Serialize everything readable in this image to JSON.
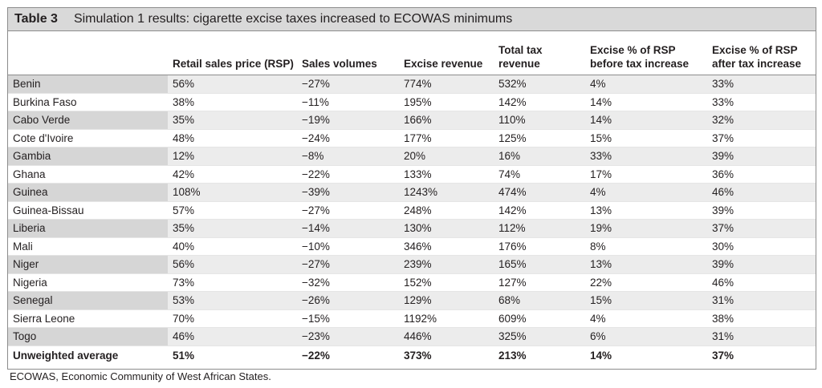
{
  "table": {
    "label": "Table 3",
    "title": "Simulation 1 results: cigarette excise taxes increased to ECOWAS minimums",
    "columns": [
      "",
      "Retail sales price (RSP)",
      "Sales volumes",
      "Excise revenue",
      "Total tax revenue",
      "Excise % of RSP before tax increase",
      "Excise % of RSP after tax increase"
    ],
    "rows": [
      [
        "Benin",
        "56%",
        "−27%",
        "774%",
        "532%",
        "4%",
        "33%"
      ],
      [
        "Burkina Faso",
        "38%",
        "−11%",
        "195%",
        "142%",
        "14%",
        "33%"
      ],
      [
        "Cabo Verde",
        "35%",
        "−19%",
        "166%",
        "110%",
        "14%",
        "32%"
      ],
      [
        "Cote d'Ivoire",
        "48%",
        "−24%",
        "177%",
        "125%",
        "15%",
        "37%"
      ],
      [
        "Gambia",
        "12%",
        "−8%",
        "20%",
        "16%",
        "33%",
        "39%"
      ],
      [
        "Ghana",
        "42%",
        "−22%",
        "133%",
        "74%",
        "17%",
        "36%"
      ],
      [
        "Guinea",
        "108%",
        "−39%",
        "1243%",
        "474%",
        "4%",
        "46%"
      ],
      [
        "Guinea-Bissau",
        "57%",
        "−27%",
        "248%",
        "142%",
        "13%",
        "39%"
      ],
      [
        "Liberia",
        "35%",
        "−14%",
        "130%",
        "112%",
        "19%",
        "37%"
      ],
      [
        "Mali",
        "40%",
        "−10%",
        "346%",
        "176%",
        "8%",
        "30%"
      ],
      [
        "Niger",
        "56%",
        "−27%",
        "239%",
        "165%",
        "13%",
        "39%"
      ],
      [
        "Nigeria",
        "73%",
        "−32%",
        "152%",
        "127%",
        "22%",
        "46%"
      ],
      [
        "Senegal",
        "53%",
        "−26%",
        "129%",
        "68%",
        "15%",
        "31%"
      ],
      [
        "Sierra Leone",
        "70%",
        "−15%",
        "1192%",
        "609%",
        "4%",
        "38%"
      ],
      [
        "Togo",
        "46%",
        "−23%",
        "446%",
        "325%",
        "6%",
        "31%"
      ]
    ],
    "average": [
      "Unweighted average",
      "51%",
      "−22%",
      "373%",
      "213%",
      "14%",
      "37%"
    ]
  },
  "footnote": "ECOWAS, Economic Community of West African States."
}
